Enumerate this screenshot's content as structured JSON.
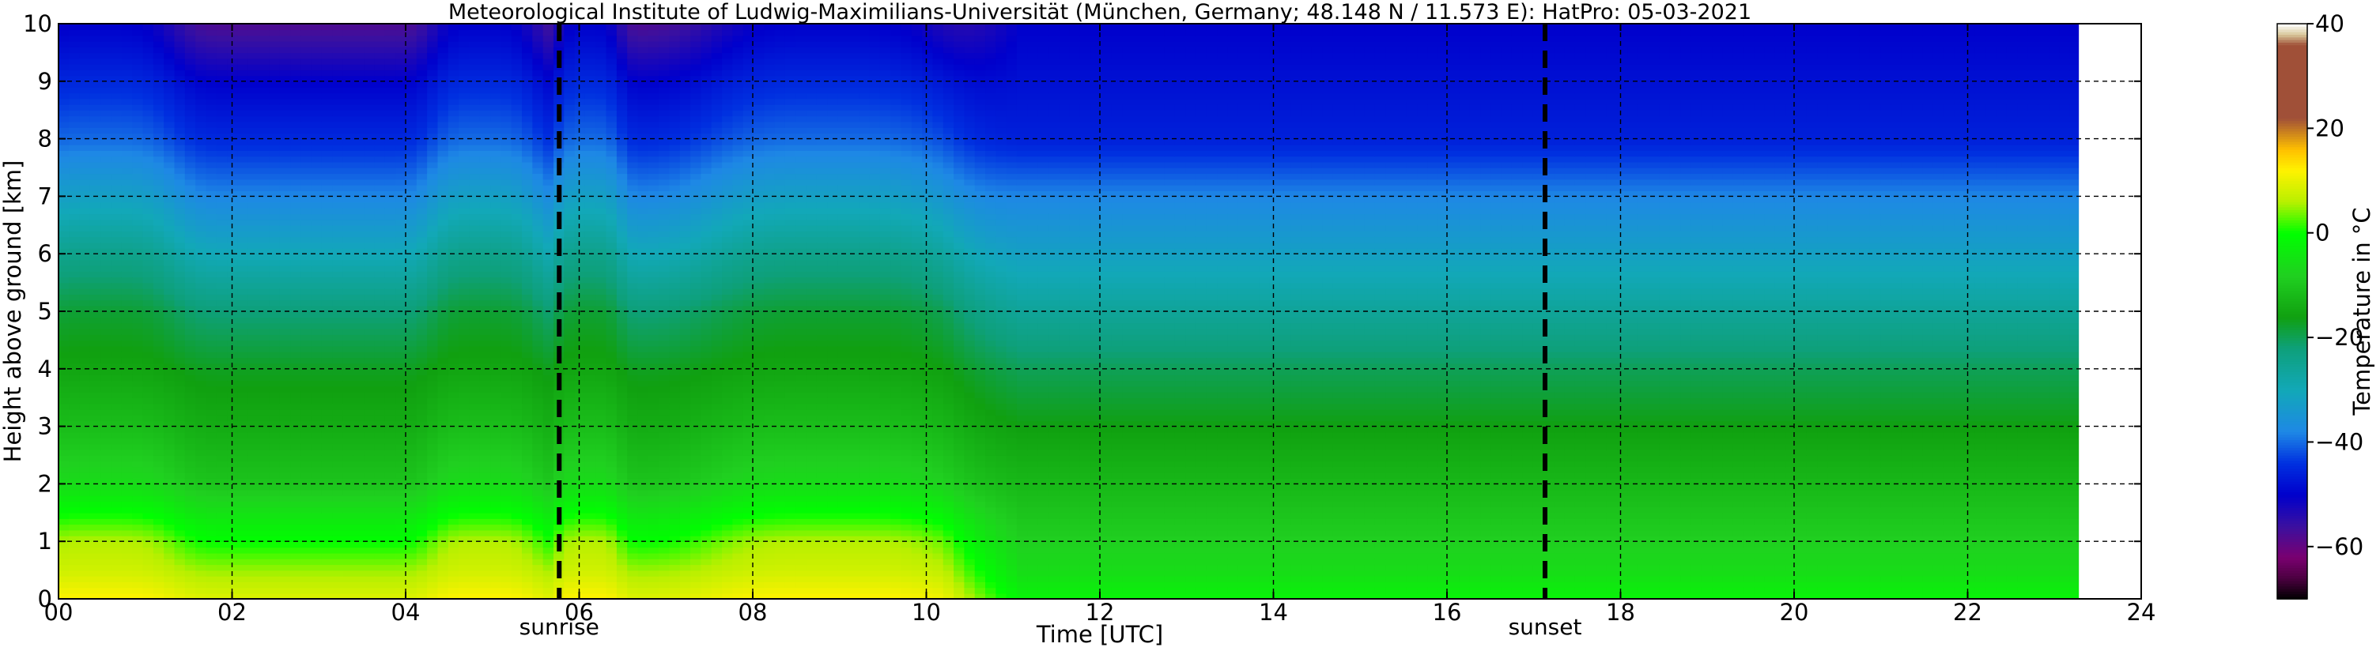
{
  "chart_data": {
    "type": "heatmap",
    "title": "Meteorological Institute of Ludwig-Maximilians-Universität (München, Germany; 48.148 N / 11.573 E):    HatPro: 05-03-2021",
    "xlabel": "Time [UTC]",
    "ylabel": "Height above ground [km]",
    "xlim": [
      0,
      24
    ],
    "ylim": [
      0,
      10
    ],
    "x_ticks": [
      "00",
      "02",
      "04",
      "06",
      "08",
      "10",
      "12",
      "14",
      "16",
      "18",
      "20",
      "22",
      "24"
    ],
    "y_ticks": [
      "0",
      "1",
      "2",
      "3",
      "4",
      "5",
      "6",
      "7",
      "8",
      "9",
      "10"
    ],
    "grid": true,
    "colorbar": {
      "label": "Temperature in °C",
      "range": [
        -70,
        40
      ],
      "ticks": [
        "40",
        "20",
        "0",
        "−20",
        "−40",
        "−60"
      ],
      "tick_values": [
        40,
        20,
        0,
        -20,
        -40,
        -60
      ],
      "stops": [
        {
          "value": -70,
          "color": "#000000"
        },
        {
          "value": -66,
          "color": "#4b0040"
        },
        {
          "value": -62,
          "color": "#7a0070"
        },
        {
          "value": -56,
          "color": "#3a10a0"
        },
        {
          "value": -50,
          "color": "#0000cc"
        },
        {
          "value": -44,
          "color": "#0030e0"
        },
        {
          "value": -38,
          "color": "#1e88e5"
        },
        {
          "value": -30,
          "color": "#12a8b8"
        },
        {
          "value": -22,
          "color": "#0ea07a"
        },
        {
          "value": -16,
          "color": "#10a010"
        },
        {
          "value": -8,
          "color": "#20d020"
        },
        {
          "value": 0,
          "color": "#00ff00"
        },
        {
          "value": 6,
          "color": "#b8f000"
        },
        {
          "value": 12,
          "color": "#fff200"
        },
        {
          "value": 16,
          "color": "#ffc000"
        },
        {
          "value": 22,
          "color": "#a05038"
        },
        {
          "value": 36,
          "color": "#a05038"
        },
        {
          "value": 38,
          "color": "#d8c89a"
        },
        {
          "value": 40,
          "color": "#ffffff"
        }
      ]
    },
    "vlines": [
      {
        "x": 5.77,
        "label": "sunrise",
        "style": "dashed"
      },
      {
        "x": 17.13,
        "label": "sunset",
        "style": "dashed"
      }
    ],
    "data_end_x": 23.3,
    "temperature_profile": {
      "heights_km": [
        0,
        0.5,
        1,
        2,
        3,
        4,
        5,
        6,
        7,
        8,
        9,
        10
      ],
      "cold_night_profile": [
        9,
        5,
        0,
        -10,
        -14,
        -17,
        -22,
        -30,
        -38,
        -45,
        -50,
        -58
      ],
      "warm_event_profile": [
        12,
        8,
        6,
        -6,
        -11,
        -15,
        -18,
        -24,
        -32,
        -40,
        -45,
        -50
      ],
      "late_day_profile": [
        -2,
        -6,
        -8,
        -12,
        -16,
        -20,
        -26,
        -32,
        -38,
        -46,
        -48,
        -50
      ]
    },
    "warm_events": [
      {
        "center": 0.5,
        "width": 0.9
      },
      {
        "center": 4.9,
        "width": 0.65
      },
      {
        "center": 6.1,
        "width": 0.4
      },
      {
        "center": 8.9,
        "width": 1.5
      }
    ]
  }
}
